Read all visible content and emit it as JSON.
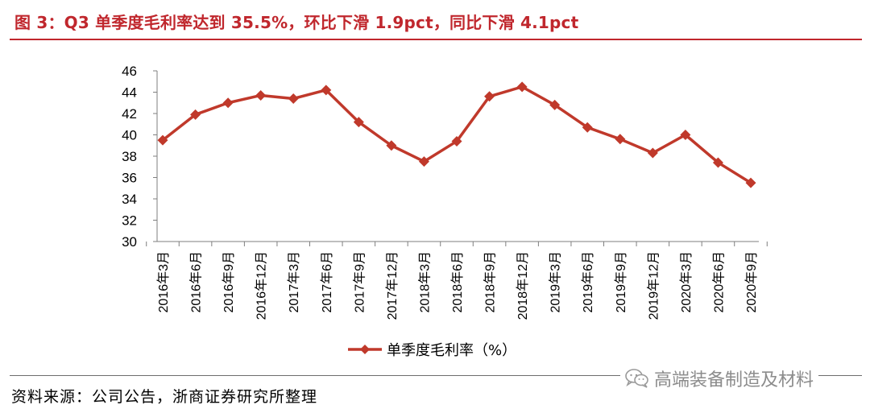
{
  "figure": {
    "title": "图 3：Q3 单季度毛利率达到 35.5%，环比下滑 1.9pct，同比下滑 4.1pct",
    "source": "资料来源：公司公告，浙商证券研究所整理",
    "watermark_text": "高端装备制造及材料",
    "watermark_icon": "wechat-icon",
    "accent_color": "#c0272d",
    "series_color": "#c0392b"
  },
  "chart_data": {
    "type": "line",
    "title": "",
    "xlabel": "",
    "ylabel": "",
    "ylim": [
      30,
      46
    ],
    "yticks": [
      "30",
      "32",
      "34",
      "36",
      "38",
      "40",
      "42",
      "44",
      "46"
    ],
    "grid": false,
    "legend_position": "bottom-center",
    "categories": [
      "2016年3月",
      "2016年6月",
      "2016年9月",
      "2016年12月",
      "2017年3月",
      "2017年6月",
      "2017年9月",
      "2017年12月",
      "2018年3月",
      "2018年6月",
      "2018年9月",
      "2018年12月",
      "2019年3月",
      "2019年6月",
      "2019年9月",
      "2019年12月",
      "2020年3月",
      "2020年6月",
      "2020年9月"
    ],
    "series": [
      {
        "name": "单季度毛利率（%）",
        "marker": "diamond",
        "values": [
          39.5,
          41.9,
          43.0,
          43.7,
          43.4,
          44.2,
          41.2,
          39.0,
          37.5,
          39.4,
          43.6,
          44.5,
          42.8,
          40.7,
          39.6,
          38.3,
          40.0,
          37.4,
          35.5
        ]
      }
    ]
  }
}
